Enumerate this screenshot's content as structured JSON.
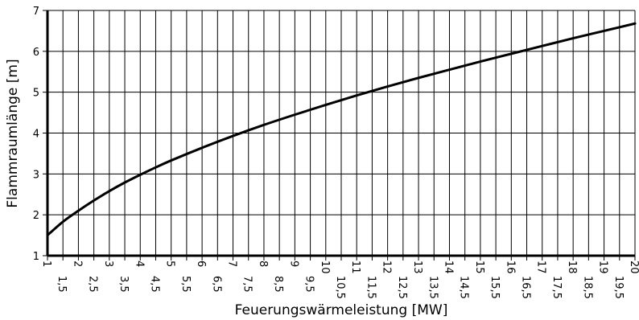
{
  "chart_data": {
    "type": "line",
    "title": "",
    "xlabel": "Feuerungswärmeleistung [MW]",
    "ylabel": "Flammraumlänge [m]",
    "xlim": [
      1,
      20
    ],
    "ylim": [
      1,
      7
    ],
    "grid": true,
    "x_ticks": [
      "1",
      "1,5",
      "2",
      "2,5",
      "3",
      "3,5",
      "4",
      "4,5",
      "5",
      "5,5",
      "6",
      "6,5",
      "7",
      "7,5",
      "8",
      "8,5",
      "9",
      "9,5",
      "10",
      "10,5",
      "11",
      "11,5",
      "12",
      "12,5",
      "13",
      "13,5",
      "14",
      "14,5",
      "15",
      "15,5",
      "16",
      "16,5",
      "17",
      "17,5",
      "18",
      "18,5",
      "19",
      "19,5",
      "20"
    ],
    "y_ticks": [
      "1",
      "2",
      "3",
      "4",
      "5",
      "6",
      "7"
    ],
    "series": [
      {
        "x": [
          1,
          1.5,
          2,
          2.5,
          3,
          3.5,
          4,
          4.5,
          5,
          6,
          7,
          8,
          9,
          10,
          11,
          12,
          13,
          14,
          15,
          16,
          17,
          18,
          19,
          20
        ],
        "y": [
          1.5,
          1.83,
          2.1,
          2.35,
          2.58,
          2.79,
          2.98,
          3.16,
          3.33,
          3.64,
          3.93,
          4.2,
          4.45,
          4.69,
          4.92,
          5.14,
          5.35,
          5.55,
          5.75,
          5.94,
          6.13,
          6.32,
          6.5,
          6.68
        ]
      }
    ]
  }
}
